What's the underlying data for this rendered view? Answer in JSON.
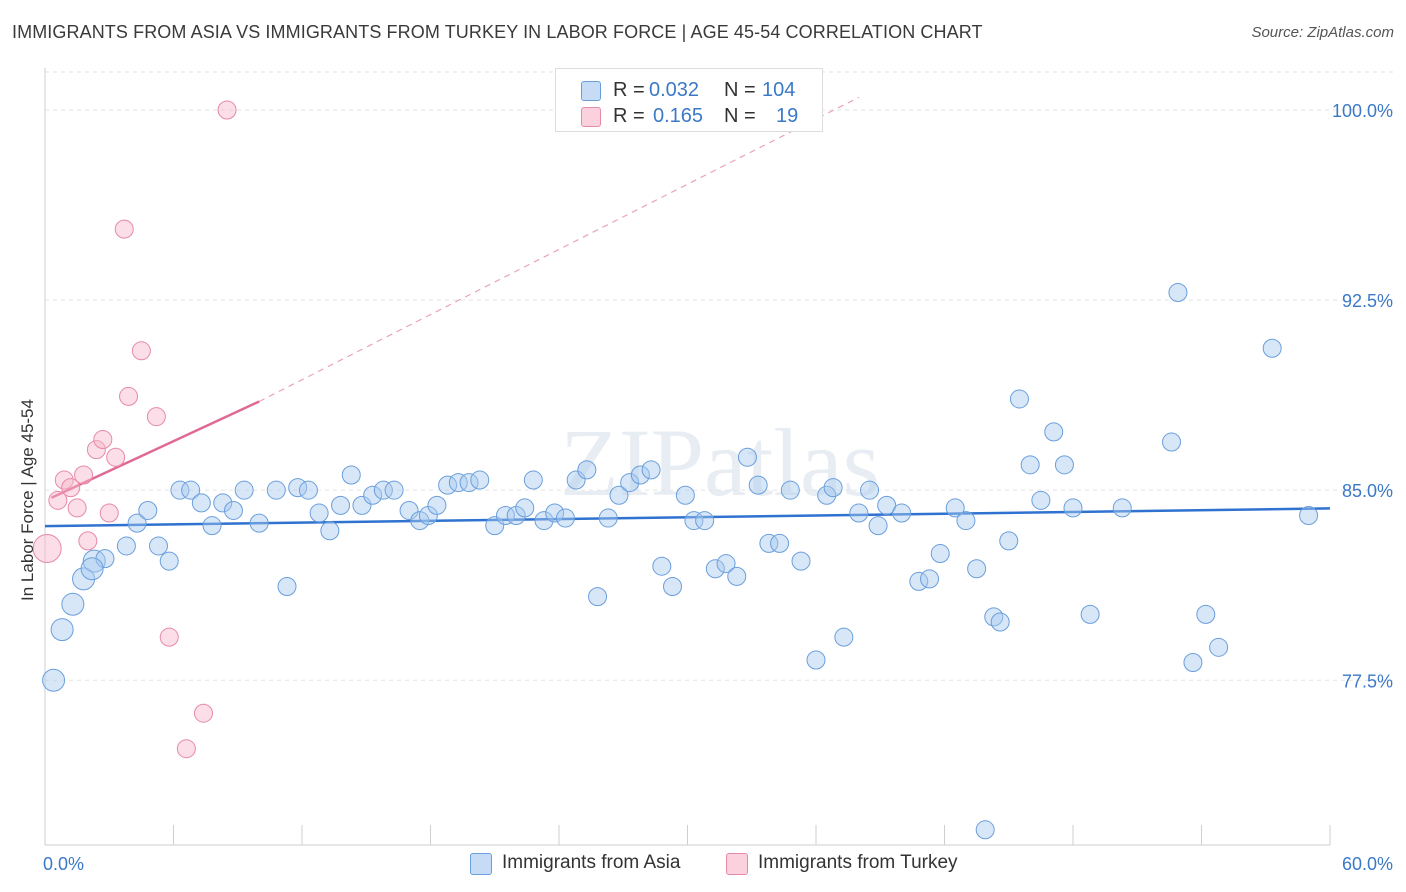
{
  "title": "IMMIGRANTS FROM ASIA VS IMMIGRANTS FROM TURKEY IN LABOR FORCE | AGE 45-54 CORRELATION CHART",
  "source": "Source: ZipAtlas.com",
  "watermark": "ZIPatlas",
  "legend_top": {
    "rows": [
      {
        "r_label": "R =",
        "r_value": "0.032",
        "n_label": "N =",
        "n_value": "104",
        "color": "#a9c9f0"
      },
      {
        "r_label": "R =",
        "r_value": "0.165",
        "n_label": "N =",
        "n_value": "19",
        "color": "#f6b6c9"
      }
    ]
  },
  "legend_bottom": [
    {
      "label": "Immigrants from Asia",
      "color": "#a9c9f0"
    },
    {
      "label": "Immigrants from Turkey",
      "color": "#f6b6c9"
    }
  ],
  "chart_data": {
    "type": "scatter",
    "ylabel": "In Labor Force | Age 45-54",
    "xlabel": "",
    "xlim": [
      0,
      60
    ],
    "ylim": [
      71.0,
      101.5
    ],
    "x_tick_labels": [
      "0.0%",
      "60.0%"
    ],
    "y_ticks": [
      77.5,
      85.0,
      92.5,
      100.0
    ],
    "y_tick_labels": [
      "77.5%",
      "85.0%",
      "92.5%",
      "100.0%"
    ],
    "grid": true,
    "series": [
      {
        "name": "Immigrants from Asia",
        "color": "#a9c9f0",
        "edge": "#6a9fdc",
        "trend": {
          "x": [
            0,
            60
          ],
          "y": [
            83.58,
            84.28
          ],
          "color": "#2f72cf"
        },
        "points": [
          [
            0.4,
            77.5
          ],
          [
            0.8,
            79.5
          ],
          [
            1.3,
            80.5
          ],
          [
            1.8,
            81.5
          ],
          [
            2.3,
            82.2
          ],
          [
            2.8,
            82.3
          ],
          [
            3.8,
            82.8
          ],
          [
            4.3,
            83.7
          ],
          [
            4.8,
            84.2
          ],
          [
            5.3,
            82.8
          ],
          [
            5.8,
            82.2
          ],
          [
            6.3,
            85.0
          ],
          [
            6.8,
            85.0
          ],
          [
            7.3,
            84.5
          ],
          [
            7.8,
            83.6
          ],
          [
            8.3,
            84.5
          ],
          [
            8.8,
            84.2
          ],
          [
            9.3,
            85.0
          ],
          [
            10.0,
            83.7
          ],
          [
            10.8,
            85.0
          ],
          [
            11.3,
            81.2
          ],
          [
            11.8,
            85.1
          ],
          [
            12.3,
            85.0
          ],
          [
            12.8,
            84.1
          ],
          [
            13.3,
            83.4
          ],
          [
            13.8,
            84.4
          ],
          [
            14.3,
            85.6
          ],
          [
            14.8,
            84.4
          ],
          [
            15.3,
            84.8
          ],
          [
            15.8,
            85.0
          ],
          [
            16.3,
            85.0
          ],
          [
            17.0,
            84.2
          ],
          [
            17.5,
            83.8
          ],
          [
            17.9,
            84.0
          ],
          [
            18.3,
            84.4
          ],
          [
            18.8,
            85.2
          ],
          [
            19.3,
            85.3
          ],
          [
            19.8,
            85.3
          ],
          [
            20.3,
            85.4
          ],
          [
            21.0,
            83.6
          ],
          [
            21.5,
            84.0
          ],
          [
            22.0,
            84.0
          ],
          [
            22.4,
            84.3
          ],
          [
            22.8,
            85.4
          ],
          [
            23.3,
            83.8
          ],
          [
            23.8,
            84.1
          ],
          [
            24.3,
            83.9
          ],
          [
            24.8,
            85.4
          ],
          [
            25.3,
            85.8
          ],
          [
            25.8,
            80.8
          ],
          [
            26.3,
            83.9
          ],
          [
            26.8,
            84.8
          ],
          [
            27.3,
            85.3
          ],
          [
            27.8,
            85.6
          ],
          [
            28.3,
            85.8
          ],
          [
            28.8,
            82.0
          ],
          [
            29.3,
            81.2
          ],
          [
            29.9,
            84.8
          ],
          [
            30.3,
            83.8
          ],
          [
            30.8,
            83.8
          ],
          [
            31.3,
            81.9
          ],
          [
            31.8,
            82.1
          ],
          [
            32.3,
            81.6
          ],
          [
            32.8,
            86.3
          ],
          [
            33.3,
            85.2
          ],
          [
            33.8,
            82.9
          ],
          [
            34.3,
            82.9
          ],
          [
            34.8,
            85.0
          ],
          [
            35.3,
            82.2
          ],
          [
            36.0,
            78.3
          ],
          [
            36.5,
            84.8
          ],
          [
            36.8,
            85.1
          ],
          [
            37.3,
            79.2
          ],
          [
            38.0,
            84.1
          ],
          [
            38.5,
            85.0
          ],
          [
            38.9,
            83.6
          ],
          [
            39.3,
            84.4
          ],
          [
            40.0,
            84.1
          ],
          [
            40.8,
            81.4
          ],
          [
            41.3,
            81.5
          ],
          [
            41.8,
            82.5
          ],
          [
            42.5,
            84.3
          ],
          [
            43.0,
            83.8
          ],
          [
            43.5,
            81.9
          ],
          [
            44.3,
            80.0
          ],
          [
            44.6,
            79.8
          ],
          [
            45.0,
            83.0
          ],
          [
            45.5,
            88.6
          ],
          [
            46.0,
            86.0
          ],
          [
            46.5,
            84.6
          ],
          [
            47.1,
            87.3
          ],
          [
            47.6,
            86.0
          ],
          [
            48.0,
            84.3
          ],
          [
            48.8,
            80.1
          ],
          [
            50.3,
            84.3
          ],
          [
            52.6,
            86.9
          ],
          [
            52.9,
            92.8
          ],
          [
            53.6,
            78.2
          ],
          [
            54.2,
            80.1
          ],
          [
            54.8,
            78.8
          ],
          [
            57.3,
            90.6
          ],
          [
            59.0,
            84.0
          ],
          [
            43.9,
            71.6
          ],
          [
            2.2,
            81.9
          ]
        ]
      },
      {
        "name": "Immigrants from Turkey",
        "color": "#f6b6c9",
        "edge": "#e78aa8",
        "trend": {
          "x": [
            0.3,
            10.0
          ],
          "y": [
            84.7,
            88.5
          ],
          "color": "#e06a95"
        },
        "trend_dashed": {
          "x": [
            10.0,
            38.0
          ],
          "y": [
            88.5,
            100.5
          ]
        },
        "points": [
          [
            0.1,
            82.7
          ],
          [
            0.6,
            84.6
          ],
          [
            0.9,
            85.4
          ],
          [
            1.2,
            85.1
          ],
          [
            1.5,
            84.3
          ],
          [
            1.8,
            85.6
          ],
          [
            2.0,
            83.0
          ],
          [
            2.4,
            86.6
          ],
          [
            2.7,
            87.0
          ],
          [
            3.0,
            84.1
          ],
          [
            3.3,
            86.3
          ],
          [
            3.7,
            95.3
          ],
          [
            3.9,
            88.7
          ],
          [
            4.5,
            90.5
          ],
          [
            5.2,
            87.9
          ],
          [
            5.8,
            79.2
          ],
          [
            6.6,
            74.8
          ],
          [
            7.4,
            76.2
          ],
          [
            8.5,
            100.0
          ]
        ]
      }
    ]
  }
}
